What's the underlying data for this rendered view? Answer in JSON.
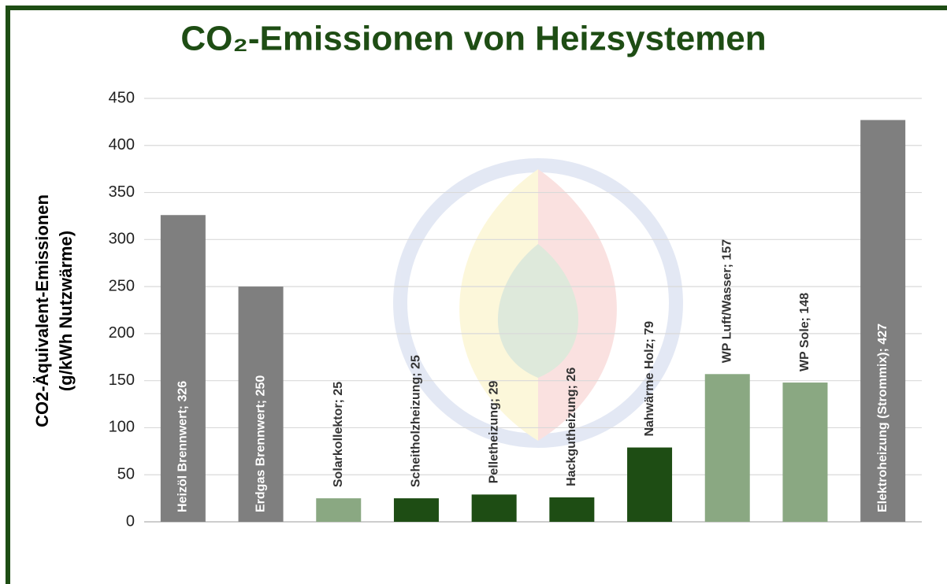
{
  "chart_data": {
    "type": "bar",
    "title": "CO₂-Emissionen von Heizsystemen",
    "ylabel": [
      "CO2-Äquivalent-Emissionen",
      "(g/kWh Nutzwärme)"
    ],
    "values": [
      326,
      250,
      25,
      25,
      29,
      26,
      79,
      157,
      148,
      427
    ],
    "value_labels": [
      "Heizöl Brennwert; 326",
      "Erdgas Brennwert; 250",
      "Solarkollektor; 25",
      "Scheitholzheizung; 25",
      "Pelletheizung; 29",
      "Hackgutheizung; 26",
      "Nahwärme Holz; 79",
      "WP Luft/Wasser; 157",
      "WP Sole; 148",
      "Elektroheizung (Strommix); 427"
    ],
    "colors": [
      "#7f7f7f",
      "#7f7f7f",
      "#8aa882",
      "#1e4d14",
      "#1e4d14",
      "#1e4d14",
      "#1e4d14",
      "#8aa882",
      "#8aa882",
      "#7f7f7f"
    ],
    "ylim": [
      0,
      450
    ],
    "yticks": [
      0,
      50,
      100,
      150,
      200,
      250,
      300,
      350,
      400,
      450
    ],
    "grid": true
  }
}
